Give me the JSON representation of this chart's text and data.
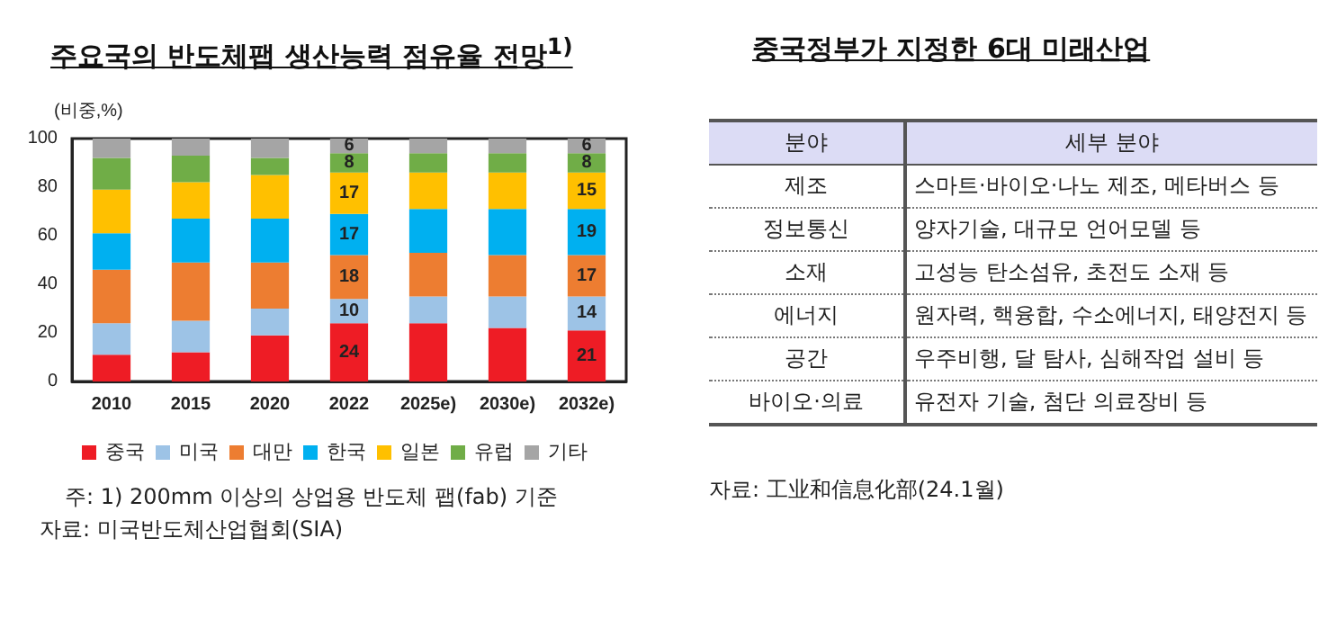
{
  "chart_data": [
    {
      "type": "bar",
      "title": "주요국의 반도체팹 생산능력 점유율 전망$^{1)}$",
      "ylabel": "(비중,%)",
      "categories": [
        "2010",
        "2015",
        "2020",
        "2022",
        "2025e)",
        "2030e)",
        "2032e)"
      ],
      "stacked": true,
      "ylim": [
        0,
        100
      ],
      "yticks": [
        0,
        20,
        40,
        60,
        80,
        100
      ],
      "grid": false,
      "legend": "bottom",
      "series": [
        {
          "name": "중국",
          "color": "#ee1c25",
          "values": [
            11,
            12,
            19,
            24,
            24,
            22,
            21
          ],
          "value_labels": [
            null,
            null,
            null,
            "24",
            null,
            null,
            "21"
          ]
        },
        {
          "name": "미국",
          "color": "#9dc3e6",
          "values": [
            13,
            13,
            11,
            10,
            11,
            13,
            14
          ],
          "value_labels": [
            null,
            null,
            null,
            "10",
            null,
            null,
            "14"
          ]
        },
        {
          "name": "대만",
          "color": "#ed7d31",
          "values": [
            22,
            24,
            19,
            18,
            18,
            17,
            17
          ],
          "value_labels": [
            null,
            null,
            null,
            "18",
            null,
            null,
            "17"
          ]
        },
        {
          "name": "한국",
          "color": "#00b0f0",
          "values": [
            15,
            18,
            18,
            17,
            18,
            19,
            19
          ],
          "value_labels": [
            null,
            null,
            null,
            "17",
            null,
            null,
            "19"
          ]
        },
        {
          "name": "일본",
          "color": "#ffc000",
          "values": [
            18,
            15,
            18,
            17,
            15,
            15,
            15
          ],
          "value_labels": [
            null,
            null,
            null,
            "17",
            null,
            null,
            "15"
          ]
        },
        {
          "name": "유럽",
          "color": "#70ad47",
          "values": [
            13,
            11,
            7,
            8,
            8,
            8,
            8
          ],
          "value_labels": [
            null,
            null,
            null,
            "8",
            null,
            null,
            "8"
          ]
        },
        {
          "name": "기타",
          "color": "#a5a5a5",
          "values": [
            8,
            7,
            8,
            6,
            6,
            6,
            6
          ],
          "value_labels": [
            null,
            null,
            null,
            "6",
            null,
            null,
            "6"
          ]
        }
      ],
      "annotations": [
        "주: 1) 200mm 이상의 상업용 반도체 팹(fab) 기준",
        "자료: 미국반도체산업협회(SIA)"
      ]
    },
    {
      "type": "other",
      "title": "중국정부가 지정한 6대 미래산업",
      "categories": [
        "분야",
        "제조",
        "정보통신",
        "소재",
        "에너지",
        "공간",
        "바이오·의료"
      ],
      "annotations": [
        "세부 분야",
        "스마트·바이오·나노 제조, 메타버스 등",
        "양자기술, 대규모 언어모델 등",
        "고성능 탄소섬유, 초전도 소재 등",
        "원자력, 핵융합, 수소에너지, 태양전지 등",
        "우주비행, 달 탐사, 심해작업 설비 등",
        "유전자 기술, 첨단 의료장비 등",
        "자료: 工业和信息化部(24.1월)"
      ]
    }
  ]
}
